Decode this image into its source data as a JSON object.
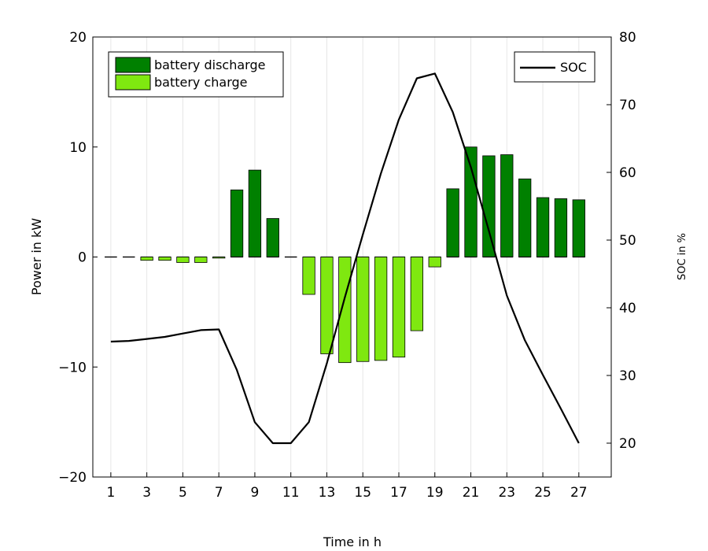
{
  "chart_data": {
    "type": "bar",
    "xlabel": "Time in h",
    "ylabel": "Power in kW",
    "y2label": "SOC in %",
    "ylim": [
      -20,
      20
    ],
    "y2lim": [
      15,
      80
    ],
    "yticks": [
      -20,
      -10,
      0,
      10,
      20
    ],
    "y2ticks": [
      20,
      30,
      40,
      50,
      60,
      70,
      80
    ],
    "xticks": [
      1,
      3,
      5,
      7,
      9,
      11,
      13,
      15,
      17,
      19,
      21,
      23,
      25,
      27
    ],
    "x": [
      1,
      2,
      3,
      4,
      5,
      6,
      7,
      8,
      9,
      10,
      11,
      12,
      13,
      14,
      15,
      16,
      17,
      18,
      19,
      20,
      21,
      22,
      23,
      24,
      25,
      26,
      27
    ],
    "grid": "vertical",
    "series": [
      {
        "name": "battery discharge",
        "kind": "bar",
        "color": "#008000",
        "values": [
          0,
          0,
          0,
          0,
          0,
          0,
          0,
          6.1,
          7.9,
          3.5,
          0,
          0,
          0,
          0,
          0,
          0,
          0,
          0,
          0,
          6.2,
          10.0,
          9.2,
          9.3,
          7.1,
          5.4,
          5.3,
          5.2
        ]
      },
      {
        "name": "battery charge",
        "kind": "bar",
        "color": "#7fe810",
        "values": [
          0,
          0,
          -0.3,
          -0.3,
          -0.5,
          -0.5,
          -0.1,
          0,
          0,
          0,
          0,
          -3.4,
          -8.8,
          -9.6,
          -9.5,
          -9.4,
          -9.1,
          -6.7,
          -0.9,
          0,
          0,
          0,
          0,
          0,
          0,
          0,
          0
        ]
      },
      {
        "name": "SOC",
        "kind": "line",
        "axis": "right",
        "color": "#000000",
        "values": [
          35.0,
          35.1,
          35.4,
          35.7,
          36.2,
          36.7,
          36.8,
          30.8,
          23.1,
          20.0,
          20.0,
          23.1,
          31.8,
          41.5,
          50.8,
          59.8,
          67.8,
          73.9,
          74.6,
          68.9,
          60.8,
          51.4,
          41.8,
          35.2,
          30.1,
          25.1,
          20.0
        ]
      }
    ],
    "legend": [
      {
        "label": "battery discharge",
        "placement": "top-left"
      },
      {
        "label": "battery charge",
        "placement": "top-left"
      },
      {
        "label": "SOC",
        "placement": "top-right"
      }
    ]
  }
}
